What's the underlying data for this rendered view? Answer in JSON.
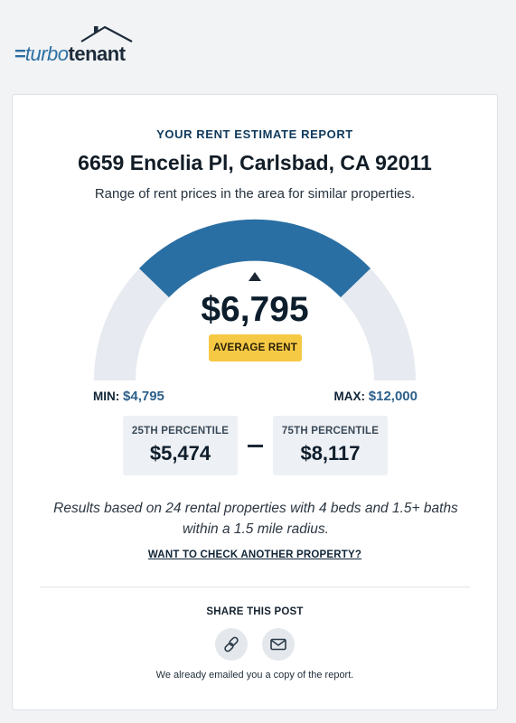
{
  "brand": {
    "lines": "=",
    "turbo": "turbo",
    "tenant": "tenant",
    "primary_color": "#2a6fa3"
  },
  "report": {
    "eyebrow": "YOUR RENT ESTIMATE REPORT",
    "address": "6659 Encelia Pl, Carlsbad, CA 92011",
    "subtitle": "Range of rent prices in the area for similar properties."
  },
  "gauge": {
    "average_value": "$6,795",
    "average_label": "AVERAGE RENT",
    "min_key": "MIN:",
    "min_value": "$4,795",
    "max_key": "MAX:",
    "max_value": "$12,000",
    "arc_color": "#2a6fa3",
    "track_color": "#e7eaf0"
  },
  "percentiles": {
    "p25_label": "25TH PERCENTILE",
    "p25_value": "$5,474",
    "p75_label": "75TH PERCENTILE",
    "p75_value": "$8,117"
  },
  "results_text": "Results based on 24 rental properties with 4 beds and 1.5+ baths within a 1.5 mile radius.",
  "check_link": "WANT TO CHECK ANOTHER PROPERTY?",
  "share": {
    "title": "SHARE THIS POST",
    "link_icon": "link-icon",
    "mail_icon": "mail-icon"
  },
  "footnote": "We already emailed you a copy of the report."
}
